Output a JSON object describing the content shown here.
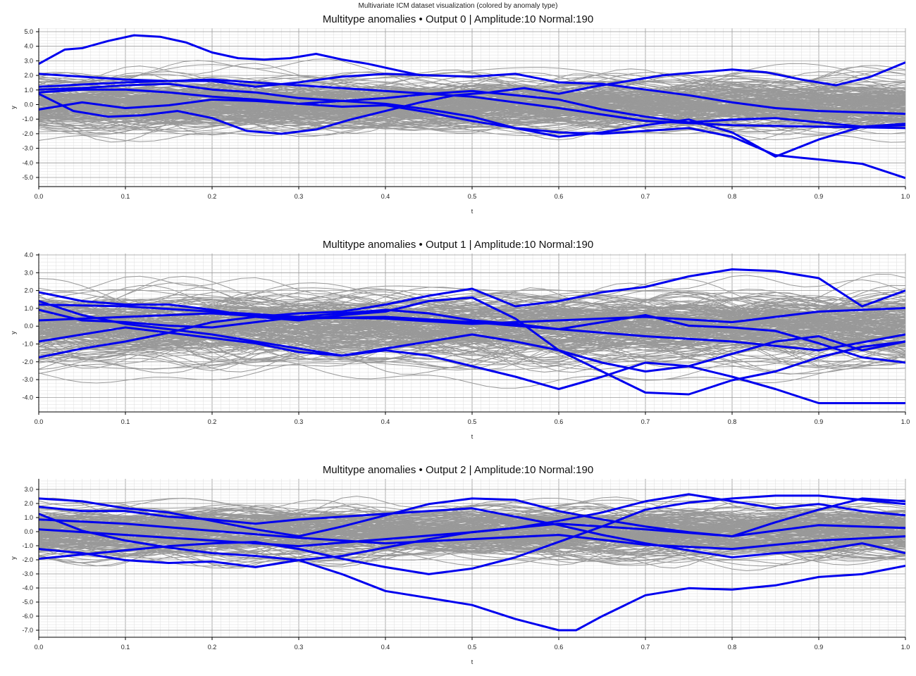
{
  "suptitle": "Multivariate ICM dataset visualization (colored by anomaly type)",
  "colors": {
    "normal": "#999999",
    "anomaly": "#0000ee",
    "grid_major": "#9a9a9a",
    "grid_minor": "#dedede"
  },
  "chart_data": [
    {
      "type": "line",
      "title": "Multitype anomalies • Output 0  |  Amplitude:10  Normal:190",
      "xlabel": "t",
      "ylabel": "y",
      "xlim": [
        0,
        1
      ],
      "ylim": [
        -5.8,
        5.3
      ],
      "xticks": [
        "0.0",
        "0.1",
        "0.2",
        "0.3",
        "0.4",
        "0.5",
        "0.6",
        "0.7",
        "0.8",
        "0.9",
        "1.0"
      ],
      "yticks": [
        "5.0",
        "4.0",
        "3.0",
        "2.0",
        "1.0",
        "0.0",
        "-1.0",
        "-2.0",
        "-3.0",
        "-4.0",
        "-5.0"
      ],
      "grid": true,
      "normal_band": {
        "center": 0.0,
        "spread": 1.1,
        "count": 190
      },
      "anomalies": [
        {
          "x": [
            0,
            0.03,
            0.05,
            0.08,
            0.11,
            0.14,
            0.17,
            0.2,
            0.23,
            0.26,
            0.29,
            0.32,
            0.35,
            0.38,
            0.41,
            0.44
          ],
          "y": [
            2.8,
            3.8,
            3.9,
            4.4,
            4.8,
            4.7,
            4.3,
            3.6,
            3.2,
            3.1,
            3.2,
            3.5,
            3.1,
            2.8,
            2.4,
            2.0
          ]
        },
        {
          "x": [
            0,
            0.05,
            0.1,
            0.15,
            0.2,
            0.25,
            0.3,
            0.35,
            0.4,
            0.45,
            0.5,
            0.55,
            0.6,
            0.65,
            0.7,
            0.75,
            0.8,
            0.85,
            0.9,
            0.95,
            1.0
          ],
          "y": [
            2.1,
            1.9,
            1.7,
            1.6,
            1.6,
            1.2,
            1.5,
            1.9,
            2.1,
            2.0,
            1.9,
            2.1,
            1.5,
            1.4,
            1.0,
            0.6,
            0.1,
            -0.3,
            -0.5,
            -0.6,
            -0.7
          ]
        },
        {
          "x": [
            0,
            0.05,
            0.1,
            0.15,
            0.2,
            0.25,
            0.3,
            0.35,
            0.4,
            0.45,
            0.5,
            0.55,
            0.6,
            0.65,
            0.7,
            0.75,
            0.8,
            0.85,
            0.9,
            0.95,
            1.0
          ],
          "y": [
            0.8,
            1.0,
            1.0,
            0.8,
            0.5,
            0.3,
            0.0,
            0.2,
            0.4,
            0.7,
            0.9,
            0.6,
            0.3,
            -0.4,
            -0.9,
            -1.3,
            -1.1,
            -1.0,
            -1.3,
            -1.6,
            -1.5
          ]
        },
        {
          "x": [
            0,
            0.04,
            0.08,
            0.12,
            0.16,
            0.2,
            0.24,
            0.28,
            0.32,
            0.36,
            0.4,
            0.44,
            0.48,
            0.52,
            0.56,
            0.6,
            0.64,
            0.68,
            0.72,
            0.76,
            0.8,
            0.84,
            0.88,
            0.92,
            0.96,
            1.0
          ],
          "y": [
            0.7,
            -0.5,
            -0.9,
            -0.8,
            -0.5,
            -1.0,
            -1.9,
            -2.1,
            -1.8,
            -1.1,
            -0.5,
            0.1,
            0.6,
            0.8,
            1.1,
            0.7,
            1.2,
            1.6,
            2.0,
            2.2,
            2.4,
            2.2,
            1.7,
            1.3,
            1.9,
            2.9
          ]
        },
        {
          "x": [
            0,
            0.05,
            0.1,
            0.15,
            0.2,
            0.25,
            0.3,
            0.35,
            0.4,
            0.45,
            0.5,
            0.55,
            0.6,
            0.65,
            0.7,
            0.75,
            0.8,
            0.85,
            0.9,
            0.95,
            1.0
          ],
          "y": [
            -0.4,
            0.1,
            -0.3,
            -0.1,
            0.3,
            0.2,
            0.0,
            -0.2,
            -0.1,
            -0.6,
            -1.2,
            -1.7,
            -2.0,
            -2.1,
            -1.9,
            -1.7,
            -2.3,
            -3.6,
            -3.9,
            -4.2,
            -5.2
          ]
        },
        {
          "x": [
            0,
            0.05,
            0.1,
            0.15,
            0.2,
            0.25,
            0.3,
            0.35,
            0.4,
            0.45,
            0.5,
            0.55,
            0.6,
            0.65,
            0.7,
            0.75,
            0.8,
            0.85,
            0.9,
            0.95,
            1.0
          ],
          "y": [
            1.0,
            1.1,
            1.3,
            1.4,
            1.0,
            0.8,
            0.4,
            0.2,
            0.0,
            -0.4,
            -0.9,
            -1.7,
            -2.3,
            -2.0,
            -1.5,
            -1.1,
            -2.0,
            -3.7,
            -2.5,
            -1.6,
            -1.4
          ]
        },
        {
          "x": [
            0,
            0.1,
            0.2,
            0.3,
            0.4,
            0.5,
            0.6,
            0.7,
            0.8,
            0.9,
            1.0
          ],
          "y": [
            1.2,
            1.5,
            1.7,
            1.3,
            0.9,
            0.5,
            -0.3,
            -1.2,
            -1.5,
            -1.6,
            -1.7
          ]
        }
      ]
    },
    {
      "type": "line",
      "title": "Multitype anomalies • Output 1  |  Amplitude:10  Normal:190",
      "xlabel": "t",
      "ylabel": "y",
      "xlim": [
        0,
        1
      ],
      "ylim": [
        -4.8,
        4.2
      ],
      "xticks": [
        "0.0",
        "0.1",
        "0.2",
        "0.3",
        "0.4",
        "0.5",
        "0.6",
        "0.7",
        "0.8",
        "0.9",
        "1.0"
      ],
      "yticks": [
        "4.0",
        "3.0",
        "2.0",
        "1.0",
        "0.0",
        "-1.0",
        "-2.0",
        "-3.0",
        "-4.0"
      ],
      "grid": true,
      "normal_band": {
        "center": 0.0,
        "spread": 1.1,
        "count": 190
      },
      "anomalies": [
        {
          "x": [
            0,
            0.05,
            0.1,
            0.15,
            0.2,
            0.25,
            0.3,
            0.35,
            0.4,
            0.45,
            0.5,
            0.55,
            0.6,
            0.65,
            0.7,
            0.75,
            0.8,
            0.85,
            0.9,
            0.95,
            1.0
          ],
          "y": [
            -1.7,
            -1.2,
            -0.8,
            -0.3,
            0.3,
            0.6,
            0.8,
            0.9,
            1.3,
            1.8,
            2.2,
            1.2,
            1.5,
            2.0,
            2.3,
            2.9,
            3.3,
            3.2,
            2.8,
            1.2,
            2.1
          ]
        },
        {
          "x": [
            0,
            0.05,
            0.1,
            0.15,
            0.2,
            0.25,
            0.3,
            0.35,
            0.4,
            0.45,
            0.5,
            0.55,
            0.6,
            0.65,
            0.7,
            0.75,
            0.8,
            0.85,
            0.9,
            0.95,
            1.0
          ],
          "y": [
            2.0,
            1.5,
            1.3,
            1.3,
            1.0,
            0.6,
            0.4,
            0.7,
            0.9,
            1.5,
            1.7,
            0.5,
            -1.3,
            -2.5,
            -3.7,
            -3.8,
            -3.0,
            -2.5,
            -1.7,
            -1.1,
            -0.8
          ]
        },
        {
          "x": [
            0,
            0.05,
            0.1,
            0.15,
            0.2,
            0.25,
            0.3,
            0.35,
            0.4,
            0.45,
            0.5,
            0.55,
            0.6,
            0.65,
            0.7,
            0.75,
            0.8,
            0.85,
            0.9,
            0.95,
            1.0
          ],
          "y": [
            1.5,
            0.7,
            0.2,
            -0.1,
            -0.4,
            -0.8,
            -1.2,
            -1.6,
            -1.3,
            -1.6,
            -2.2,
            -2.8,
            -3.5,
            -2.8,
            -2.0,
            -2.2,
            -2.8,
            -3.5,
            -4.3,
            -4.3,
            -4.3
          ]
        },
        {
          "x": [
            0,
            0.05,
            0.1,
            0.15,
            0.2,
            0.25,
            0.3,
            0.35,
            0.4,
            0.45,
            0.5,
            0.55,
            0.6,
            0.65,
            0.7,
            0.75,
            0.8,
            0.85,
            0.9,
            0.95,
            1.0
          ],
          "y": [
            -0.8,
            -0.4,
            0.0,
            -0.3,
            -0.6,
            -0.9,
            -1.4,
            -1.6,
            -1.2,
            -0.8,
            -0.4,
            -0.8,
            -1.3,
            -2.0,
            -2.5,
            -2.2,
            -1.5,
            -0.8,
            -0.5,
            -1.3,
            -0.8
          ]
        },
        {
          "x": [
            0,
            0.05,
            0.1,
            0.15,
            0.2,
            0.25,
            0.3,
            0.35,
            0.4,
            0.45,
            0.5,
            0.55,
            0.6,
            0.65,
            0.7,
            0.75,
            0.8,
            0.85,
            0.9,
            0.95,
            1.0
          ],
          "y": [
            1.0,
            0.4,
            0.3,
            0.1,
            0.0,
            0.3,
            0.6,
            0.8,
            1.0,
            0.8,
            0.4,
            0.2,
            -0.1,
            0.3,
            0.7,
            0.1,
            0.0,
            -0.2,
            -0.9,
            -1.7,
            -2.0
          ]
        },
        {
          "x": [
            0,
            0.1,
            0.2,
            0.3,
            0.4,
            0.5,
            0.6,
            0.7,
            0.8,
            0.9,
            1.0
          ],
          "y": [
            0.4,
            0.6,
            0.8,
            0.5,
            0.6,
            0.3,
            -0.1,
            -0.5,
            -0.8,
            -1.3,
            -0.4
          ]
        },
        {
          "x": [
            0,
            0.1,
            0.2,
            0.3,
            0.4,
            0.5,
            0.6,
            0.7,
            0.8,
            0.9,
            1.0
          ],
          "y": [
            1.3,
            1.2,
            0.9,
            0.6,
            0.5,
            0.2,
            0.4,
            0.6,
            0.3,
            0.9,
            1.1
          ]
        }
      ]
    },
    {
      "type": "line",
      "title": "Multitype anomalies • Output 2  |  Amplitude:10  Normal:190",
      "xlabel": "t",
      "ylabel": "y",
      "xlim": [
        0,
        1
      ],
      "ylim": [
        -7.5,
        3.8
      ],
      "xticks": [
        "0.0",
        "0.1",
        "0.2",
        "0.3",
        "0.4",
        "0.5",
        "0.6",
        "0.7",
        "0.8",
        "0.9",
        "1.0"
      ],
      "yticks": [
        "3.0",
        "2.0",
        "1.0",
        "0.0",
        "-1.0",
        "-2.0",
        "-3.0",
        "-4.0",
        "-5.0",
        "-6.0",
        "-7.0"
      ],
      "grid": true,
      "normal_band": {
        "center": 0.0,
        "spread": 1.05,
        "count": 190
      },
      "anomalies": [
        {
          "x": [
            0,
            0.05,
            0.1,
            0.15,
            0.2,
            0.25,
            0.3,
            0.35,
            0.4,
            0.45,
            0.5,
            0.55,
            0.6,
            0.62,
            0.65,
            0.7,
            0.75,
            0.8,
            0.85,
            0.9,
            0.95,
            1.0
          ],
          "y": [
            1.3,
            0.1,
            -0.6,
            -1.1,
            -1.5,
            -1.7,
            -2.0,
            -3.0,
            -4.2,
            -4.7,
            -5.2,
            -6.2,
            -7.0,
            -7.0,
            -6.0,
            -4.5,
            -4.0,
            -4.1,
            -3.8,
            -3.2,
            -3.0,
            -2.4
          ]
        },
        {
          "x": [
            0,
            0.05,
            0.1,
            0.15,
            0.2,
            0.25,
            0.3,
            0.35,
            0.4,
            0.45,
            0.5,
            0.55,
            0.6,
            0.65,
            0.7,
            0.75,
            0.8,
            0.85,
            0.9,
            0.95,
            1.0
          ],
          "y": [
            2.4,
            2.2,
            1.7,
            1.4,
            0.8,
            0.2,
            -0.3,
            0.4,
            1.2,
            2.0,
            2.4,
            2.3,
            1.5,
            0.9,
            0.4,
            0.0,
            -0.3,
            0.7,
            1.6,
            2.4,
            2.2
          ]
        },
        {
          "x": [
            0,
            0.05,
            0.1,
            0.15,
            0.2,
            0.25,
            0.3,
            0.35,
            0.4,
            0.45,
            0.5,
            0.55,
            0.6,
            0.65,
            0.7,
            0.75,
            0.8,
            0.85,
            0.9,
            0.95,
            1.0
          ],
          "y": [
            1.8,
            1.5,
            1.5,
            1.1,
            0.9,
            0.6,
            0.9,
            1.1,
            1.3,
            1.5,
            1.7,
            1.1,
            0.5,
            -0.2,
            -0.8,
            -1.3,
            -1.8,
            -1.5,
            -1.3,
            -0.8,
            -1.5
          ]
        },
        {
          "x": [
            0,
            0.05,
            0.1,
            0.15,
            0.2,
            0.25,
            0.3,
            0.35,
            0.4,
            0.45,
            0.5,
            0.55,
            0.6,
            0.65,
            0.7,
            0.75,
            0.8,
            0.85,
            0.9,
            0.95,
            1.0
          ],
          "y": [
            -1.9,
            -1.6,
            -1.3,
            -1.0,
            -0.8,
            -0.7,
            -1.2,
            -1.9,
            -2.5,
            -3.0,
            -2.6,
            -1.8,
            -0.7,
            0.4,
            1.6,
            2.1,
            2.4,
            2.6,
            2.6,
            2.3,
            2.0
          ]
        },
        {
          "x": [
            0,
            0.05,
            0.1,
            0.15,
            0.2,
            0.25,
            0.3,
            0.35,
            0.4,
            0.45,
            0.5,
            0.55,
            0.6,
            0.65,
            0.7,
            0.75,
            0.8,
            0.85,
            0.9,
            0.95,
            1.0
          ],
          "y": [
            -1.2,
            -1.5,
            -2.0,
            -2.2,
            -2.1,
            -2.5,
            -2.0,
            -1.7,
            -1.1,
            -0.5,
            0.0,
            0.3,
            0.8,
            1.4,
            2.2,
            2.7,
            2.2,
            1.7,
            2.0,
            1.5,
            1.2
          ]
        },
        {
          "x": [
            0,
            0.1,
            0.2,
            0.3,
            0.4,
            0.5,
            0.6,
            0.7,
            0.8,
            0.9,
            1.0
          ],
          "y": [
            0.2,
            -0.2,
            -0.6,
            -1.0,
            -0.5,
            0.0,
            0.6,
            0.2,
            -0.3,
            0.5,
            0.3
          ]
        },
        {
          "x": [
            0,
            0.1,
            0.2,
            0.3,
            0.4,
            0.5,
            0.6,
            0.7,
            0.8,
            0.9,
            1.0
          ],
          "y": [
            0.9,
            0.6,
            0.1,
            -0.4,
            -0.8,
            -0.5,
            -0.2,
            -0.9,
            -1.2,
            -0.6,
            -0.3
          ]
        }
      ]
    }
  ]
}
